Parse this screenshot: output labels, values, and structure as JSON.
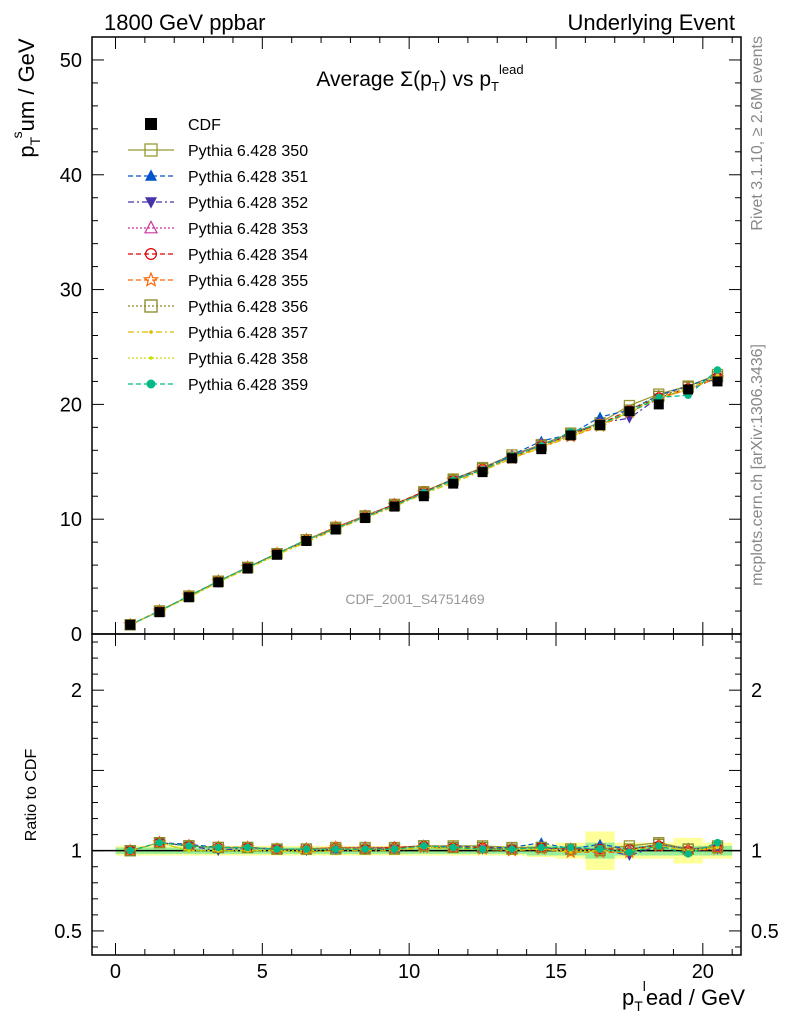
{
  "header": {
    "left": "1800 GeV ppbar",
    "right": "Underlying Event"
  },
  "side_labels": {
    "rivet": "Rivet 3.1.10, ≥ 2.6M events",
    "mcplots": "mcplots.cern.ch [arXiv:1306.3436]"
  },
  "chart_data": [
    {
      "type": "line",
      "panel": "main",
      "title": "Average Σ(p_T) vs p_T^lead",
      "watermark": "CDF_2001_S4751469",
      "xlabel": "p_T^lead / GeV",
      "ylabel": "p_T^sum / GeV",
      "xlim": [
        -0.8,
        21.3
      ],
      "ylim": [
        0,
        52
      ],
      "x_ticks": [
        0,
        5,
        10,
        15,
        20
      ],
      "y_ticks": [
        0,
        10,
        20,
        30,
        40,
        50
      ],
      "legend_position": "top-left",
      "x": [
        0.5,
        1.5,
        2.5,
        3.5,
        4.5,
        5.5,
        6.5,
        7.5,
        8.5,
        9.5,
        10.5,
        11.5,
        12.5,
        13.5,
        14.5,
        15.5,
        16.5,
        17.5,
        18.5,
        19.5,
        20.5
      ],
      "data": {
        "name": "CDF",
        "values": [
          0.8,
          1.9,
          3.2,
          4.5,
          5.7,
          6.9,
          8.1,
          9.1,
          10.1,
          11.1,
          12.0,
          13.1,
          14.1,
          15.3,
          16.1,
          17.3,
          18.2,
          19.4,
          20.0,
          21.3,
          22.0
        ]
      },
      "series": [
        {
          "name": "Pythia 6.428 350",
          "color": "#999933",
          "marker": "open-square",
          "dash": "solid",
          "values": [
            0.8,
            2.0,
            3.3,
            4.6,
            5.8,
            7.0,
            8.2,
            9.3,
            10.3,
            11.3,
            12.4,
            13.5,
            14.5,
            15.6,
            16.5,
            17.5,
            18.4,
            19.9,
            20.9,
            21.6,
            22.6
          ]
        },
        {
          "name": "Pythia 6.428 351",
          "color": "#0055cc",
          "marker": "filled-triangle-up",
          "dash": "dash",
          "values": [
            0.8,
            2.0,
            3.3,
            4.6,
            5.8,
            7.0,
            8.2,
            9.2,
            10.2,
            11.2,
            12.3,
            13.5,
            14.4,
            15.6,
            16.8,
            17.4,
            18.9,
            19.5,
            20.8,
            21.6,
            22.5
          ]
        },
        {
          "name": "Pythia 6.428 352",
          "color": "#4433aa",
          "marker": "filled-triangle-down",
          "dash": "dashdot",
          "values": [
            0.8,
            2.0,
            3.3,
            4.5,
            5.8,
            7.0,
            8.1,
            9.2,
            10.2,
            11.2,
            12.3,
            13.4,
            14.3,
            15.5,
            16.4,
            17.3,
            18.4,
            18.8,
            20.6,
            21.3,
            22.3
          ]
        },
        {
          "name": "Pythia 6.428 353",
          "color": "#cc3399",
          "marker": "open-triangle-up",
          "dash": "dot",
          "values": [
            0.8,
            2.0,
            3.3,
            4.6,
            5.8,
            7.0,
            8.2,
            9.3,
            10.3,
            11.3,
            12.3,
            13.4,
            14.4,
            15.5,
            16.5,
            17.4,
            18.3,
            19.4,
            20.7,
            21.5,
            22.4
          ]
        },
        {
          "name": "Pythia 6.428 354",
          "color": "#dd0000",
          "marker": "open-circle",
          "dash": "dash",
          "values": [
            0.8,
            2.0,
            3.3,
            4.6,
            5.8,
            7.0,
            8.2,
            9.3,
            10.2,
            11.3,
            12.4,
            13.4,
            14.4,
            15.4,
            16.4,
            17.4,
            18.3,
            19.5,
            20.6,
            21.4,
            22.4
          ]
        },
        {
          "name": "Pythia 6.428 355",
          "color": "#ff6600",
          "marker": "open-star",
          "dash": "dash",
          "values": [
            0.8,
            2.0,
            3.3,
            4.6,
            5.8,
            7.0,
            8.2,
            9.3,
            10.2,
            11.2,
            12.3,
            13.4,
            14.3,
            15.3,
            16.3,
            17.2,
            18.1,
            19.3,
            20.5,
            21.3,
            22.3
          ]
        },
        {
          "name": "Pythia 6.428 356",
          "color": "#888822",
          "marker": "open-square",
          "dash": "dot",
          "values": [
            0.8,
            2.0,
            3.3,
            4.6,
            5.8,
            7.0,
            8.2,
            9.2,
            10.2,
            11.2,
            12.3,
            13.4,
            14.4,
            15.4,
            16.4,
            17.4,
            18.2,
            19.5,
            20.7,
            21.5,
            22.4
          ]
        },
        {
          "name": "Pythia 6.428 357",
          "color": "#ddbb00",
          "marker": "small-dot",
          "dash": "dashdot",
          "values": [
            0.8,
            2.0,
            3.2,
            4.5,
            5.7,
            6.9,
            8.0,
            9.1,
            10.1,
            11.1,
            12.2,
            13.2,
            14.2,
            15.3,
            16.2,
            17.2,
            18.2,
            19.3,
            20.5,
            21.3,
            22.4
          ]
        },
        {
          "name": "Pythia 6.428 358",
          "color": "#ccdd00",
          "marker": "small-dot",
          "dash": "dot",
          "values": [
            0.8,
            2.0,
            3.2,
            4.5,
            5.7,
            6.9,
            8.1,
            9.2,
            10.2,
            11.2,
            12.3,
            13.3,
            14.3,
            15.4,
            16.3,
            17.3,
            18.2,
            19.4,
            20.6,
            21.4,
            22.5
          ]
        },
        {
          "name": "Pythia 6.428 359",
          "color": "#00bb88",
          "marker": "filled-circle",
          "dash": "dash",
          "values": [
            0.8,
            2.0,
            3.3,
            4.6,
            5.8,
            7.0,
            8.2,
            9.2,
            10.2,
            11.2,
            12.3,
            13.4,
            14.3,
            15.5,
            16.4,
            17.6,
            18.3,
            19.3,
            20.6,
            20.8,
            23.0
          ]
        }
      ]
    },
    {
      "type": "line",
      "panel": "ratio",
      "ylabel": "Ratio to CDF",
      "xlim": [
        -0.8,
        21.3
      ],
      "ylim": [
        0.35,
        2.35
      ],
      "y_ticks": [
        0.5,
        1,
        2
      ],
      "y_tick_labels": [
        "0.5",
        "1",
        "2"
      ],
      "x": [
        0.5,
        1.5,
        2.5,
        3.5,
        4.5,
        5.5,
        6.5,
        7.5,
        8.5,
        9.5,
        10.5,
        11.5,
        12.5,
        13.5,
        14.5,
        15.5,
        16.5,
        17.5,
        18.5,
        19.5,
        20.5
      ],
      "band_inner": [
        0.02,
        0.02,
        0.02,
        0.02,
        0.02,
        0.02,
        0.02,
        0.02,
        0.02,
        0.02,
        0.02,
        0.02,
        0.02,
        0.02,
        0.03,
        0.03,
        0.05,
        0.03,
        0.03,
        0.03,
        0.03
      ],
      "band_outer": [
        0.03,
        0.03,
        0.03,
        0.03,
        0.03,
        0.03,
        0.03,
        0.03,
        0.03,
        0.03,
        0.03,
        0.03,
        0.03,
        0.03,
        0.04,
        0.05,
        0.12,
        0.05,
        0.05,
        0.08,
        0.05
      ],
      "series": [
        {
          "name": "Pythia 6.428 350",
          "values": [
            1.0,
            1.05,
            1.03,
            1.02,
            1.02,
            1.01,
            1.01,
            1.02,
            1.02,
            1.02,
            1.03,
            1.03,
            1.03,
            1.02,
            1.02,
            1.01,
            1.01,
            1.03,
            1.05,
            1.01,
            1.03
          ]
        },
        {
          "name": "Pythia 6.428 351",
          "values": [
            1.0,
            1.05,
            1.04,
            1.02,
            1.02,
            1.01,
            1.01,
            1.01,
            1.01,
            1.01,
            1.02,
            1.03,
            1.02,
            1.02,
            1.05,
            1.01,
            1.04,
            1.01,
            1.04,
            1.01,
            1.02
          ]
        },
        {
          "name": "Pythia 6.428 352",
          "values": [
            1.0,
            1.05,
            1.03,
            1.0,
            1.02,
            1.01,
            1.0,
            1.01,
            1.01,
            1.01,
            1.02,
            1.02,
            1.01,
            1.01,
            1.02,
            1.0,
            1.01,
            0.97,
            1.03,
            1.0,
            1.01
          ]
        },
        {
          "name": "Pythia 6.428 353",
          "values": [
            1.0,
            1.05,
            1.03,
            1.02,
            1.02,
            1.01,
            1.01,
            1.02,
            1.02,
            1.02,
            1.03,
            1.02,
            1.02,
            1.01,
            1.02,
            1.01,
            1.01,
            1.0,
            1.04,
            1.01,
            1.02
          ]
        },
        {
          "name": "Pythia 6.428 354",
          "values": [
            1.0,
            1.05,
            1.03,
            1.02,
            1.02,
            1.01,
            1.01,
            1.02,
            1.01,
            1.02,
            1.03,
            1.02,
            1.02,
            1.01,
            1.02,
            1.01,
            1.01,
            1.01,
            1.03,
            1.0,
            1.02
          ]
        },
        {
          "name": "Pythia 6.428 355",
          "values": [
            1.0,
            1.05,
            1.03,
            1.02,
            1.02,
            1.01,
            1.01,
            1.02,
            1.01,
            1.01,
            1.02,
            1.02,
            1.01,
            1.0,
            1.01,
            0.99,
            0.99,
            0.99,
            1.03,
            1.0,
            1.01
          ]
        },
        {
          "name": "Pythia 6.428 356",
          "values": [
            1.0,
            1.05,
            1.03,
            1.02,
            1.02,
            1.01,
            1.01,
            1.01,
            1.01,
            1.01,
            1.03,
            1.02,
            1.02,
            1.01,
            1.02,
            1.01,
            1.0,
            1.01,
            1.04,
            1.01,
            1.02
          ]
        },
        {
          "name": "Pythia 6.428 357",
          "values": [
            1.0,
            1.05,
            1.0,
            1.0,
            1.0,
            1.0,
            0.99,
            1.0,
            1.0,
            1.0,
            1.02,
            1.01,
            1.01,
            1.0,
            1.01,
            0.99,
            1.0,
            0.99,
            1.03,
            1.0,
            1.02
          ]
        },
        {
          "name": "Pythia 6.428 358",
          "values": [
            1.0,
            1.05,
            1.0,
            1.0,
            1.0,
            1.0,
            1.0,
            1.01,
            1.01,
            1.01,
            1.02,
            1.02,
            1.01,
            1.01,
            1.01,
            1.0,
            1.0,
            1.0,
            1.03,
            1.0,
            1.02
          ]
        },
        {
          "name": "Pythia 6.428 359",
          "values": [
            1.0,
            1.05,
            1.03,
            1.02,
            1.02,
            1.01,
            1.01,
            1.01,
            1.01,
            1.01,
            1.03,
            1.02,
            1.01,
            1.01,
            1.02,
            1.02,
            1.01,
            0.99,
            1.03,
            0.98,
            1.05
          ]
        }
      ]
    }
  ]
}
